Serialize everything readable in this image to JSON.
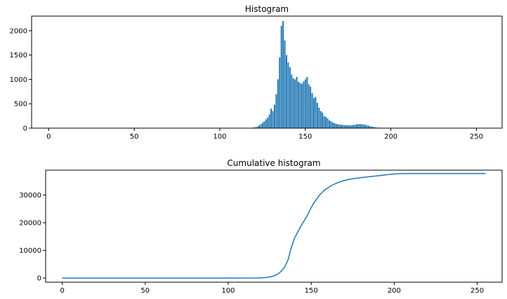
{
  "chart_data": [
    {
      "type": "bar",
      "title": "Histogram",
      "xlabel": "",
      "ylabel": "",
      "xlim": [
        -10,
        265
      ],
      "ylim": [
        0,
        2300
      ],
      "xticks": [
        0,
        50,
        100,
        150,
        200,
        250
      ],
      "yticks": [
        0,
        500,
        1000,
        1500,
        2000
      ],
      "grid": false,
      "color": "#1f77b4",
      "x_start": 118,
      "values": [
        5,
        10,
        15,
        20,
        30,
        60,
        80,
        110,
        140,
        180,
        220,
        280,
        400,
        350,
        480,
        700,
        1000,
        1450,
        2100,
        2200,
        1800,
        1500,
        1350,
        1250,
        1100,
        1020,
        1000,
        1050,
        950,
        930,
        910,
        960,
        1000,
        1050,
        900,
        850,
        720,
        620,
        640,
        520,
        420,
        350,
        320,
        250,
        230,
        200,
        160,
        140,
        120,
        100,
        90,
        80,
        75,
        70,
        65,
        60,
        62,
        58,
        55,
        60,
        65,
        70,
        80,
        82,
        85,
        80,
        75,
        70,
        60,
        50,
        40,
        30,
        22,
        18,
        12,
        8,
        10,
        6,
        4,
        3,
        2,
        1
      ]
    },
    {
      "type": "line",
      "title": "Cumulative histogram",
      "xlabel": "",
      "ylabel": "",
      "xlim": [
        -10,
        265
      ],
      "ylim": [
        -1500,
        39000
      ],
      "xticks": [
        0,
        50,
        100,
        150,
        200,
        250
      ],
      "yticks": [
        0,
        10000,
        20000,
        30000
      ],
      "grid": false,
      "color": "#1f77b4",
      "series": [
        {
          "x": [
            0,
            50,
            100,
            118,
            122,
            126,
            128,
            130,
            132,
            134,
            136,
            138,
            140,
            144,
            148,
            150,
            152,
            155,
            158,
            162,
            166,
            170,
            175,
            180,
            186,
            192,
            198,
            202,
            210,
            230,
            255
          ],
          "y": [
            0,
            0,
            0,
            20,
            150,
            500,
            900,
            1500,
            2500,
            4000,
            6500,
            11000,
            14500,
            19000,
            23000,
            25500,
            27500,
            30000,
            31800,
            33400,
            34500,
            35300,
            35900,
            36300,
            36700,
            37100,
            37500,
            37700,
            37800,
            37800,
            37800
          ]
        }
      ]
    }
  ]
}
